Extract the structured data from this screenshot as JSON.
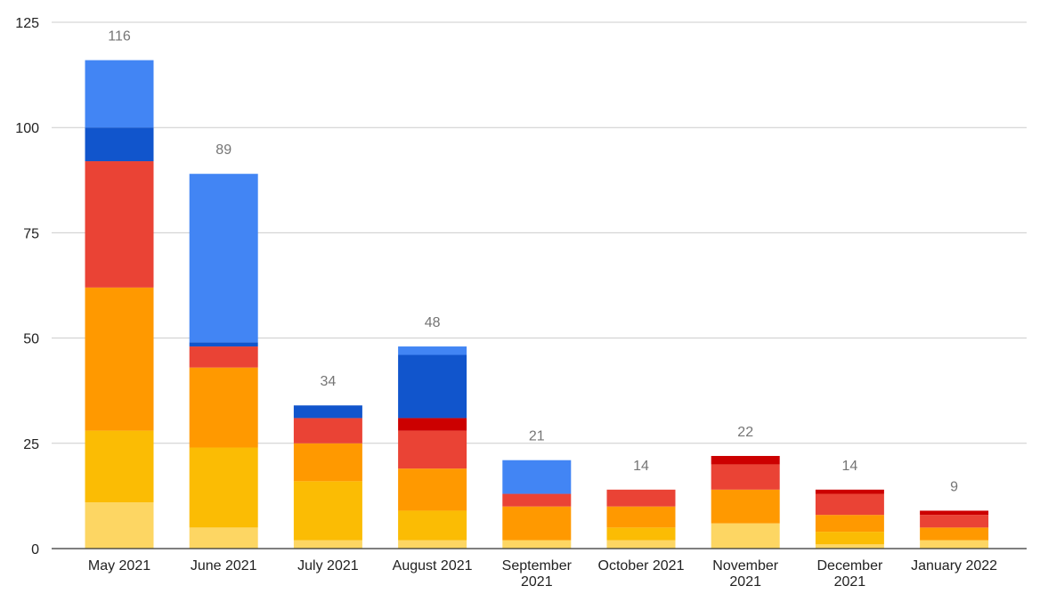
{
  "chart_data": {
    "type": "bar",
    "stacked": true,
    "title": "",
    "xlabel": "",
    "ylabel": "",
    "ylim": [
      0,
      125
    ],
    "yticks": [
      0,
      25,
      50,
      75,
      100,
      125
    ],
    "grid": true,
    "legend": "none",
    "categories": [
      [
        "May 2021"
      ],
      [
        "June 2021"
      ],
      [
        "July 2021"
      ],
      [
        "August 2021"
      ],
      [
        "September",
        "2021"
      ],
      [
        "October 2021"
      ],
      [
        "November",
        "2021"
      ],
      [
        "December",
        "2021"
      ],
      [
        "January 2022"
      ]
    ],
    "series": [
      {
        "color": "#fdd663",
        "values": [
          11,
          5,
          2,
          2,
          2,
          2,
          6,
          1,
          2
        ]
      },
      {
        "color": "#fbbc04",
        "values": [
          17,
          19,
          14,
          7,
          0,
          3,
          0,
          3,
          0
        ]
      },
      {
        "color": "#ff9900",
        "values": [
          34,
          19,
          9,
          10,
          8,
          5,
          8,
          4,
          3
        ]
      },
      {
        "color": "#ea4335",
        "values": [
          30,
          5,
          6,
          9,
          3,
          4,
          6,
          5,
          3
        ]
      },
      {
        "color": "#cc0000",
        "values": [
          0,
          0,
          0,
          3,
          0,
          0,
          2,
          1,
          1
        ]
      },
      {
        "color": "#1155cc",
        "values": [
          8,
          1,
          3,
          15,
          0,
          0,
          0,
          0,
          0
        ]
      },
      {
        "color": "#4285f4",
        "values": [
          16,
          40,
          0,
          2,
          8,
          0,
          0,
          0,
          0
        ]
      }
    ],
    "totals": [
      "116",
      "89",
      "34",
      "48",
      "21",
      "14",
      "22",
      "14",
      "9"
    ]
  }
}
